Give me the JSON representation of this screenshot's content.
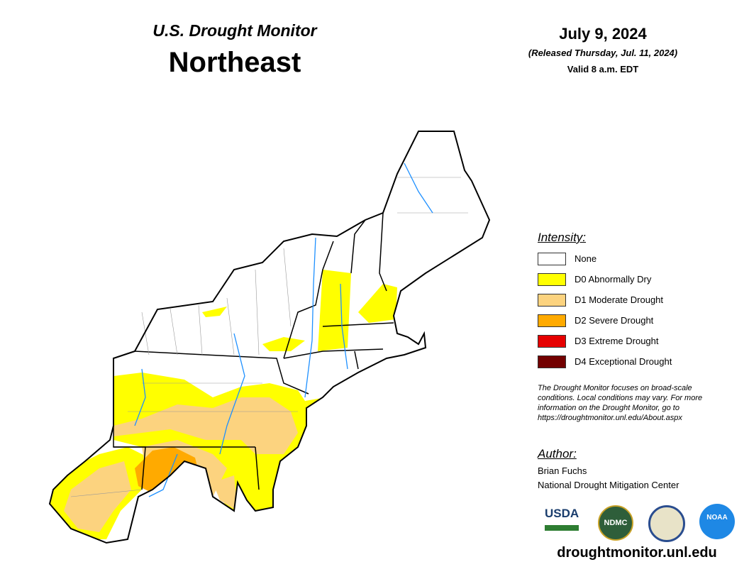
{
  "header": {
    "subtitle": "U.S. Drought Monitor",
    "title": "Northeast"
  },
  "date": {
    "date": "July 9, 2024",
    "released": "(Released Thursday, Jul. 11, 2024)",
    "valid": "Valid 8 a.m. EDT"
  },
  "legend": {
    "title": "Intensity:",
    "items": [
      {
        "label": "None",
        "color": "#ffffff"
      },
      {
        "label": "D0 Abnormally Dry",
        "color": "#ffff00"
      },
      {
        "label": "D1 Moderate Drought",
        "color": "#fcd37f"
      },
      {
        "label": "D2 Severe Drought",
        "color": "#ffaa00"
      },
      {
        "label": "D3 Extreme Drought",
        "color": "#e60000"
      },
      {
        "label": "D4 Exceptional Drought",
        "color": "#730000"
      }
    ]
  },
  "note": [
    "The Drought Monitor focuses on broad-scale",
    "conditions. Local conditions may vary. For more",
    "information on the Drought Monitor, go to",
    "https://droughtmonitor.unl.edu/About.aspx"
  ],
  "author": {
    "title": "Author:",
    "name": "Brian Fuchs",
    "org": "National Drought Mitigation Center"
  },
  "logos": [
    "USDA",
    "NDMC",
    "NOAA"
  ],
  "url": "droughtmonitor.unl.edu"
}
